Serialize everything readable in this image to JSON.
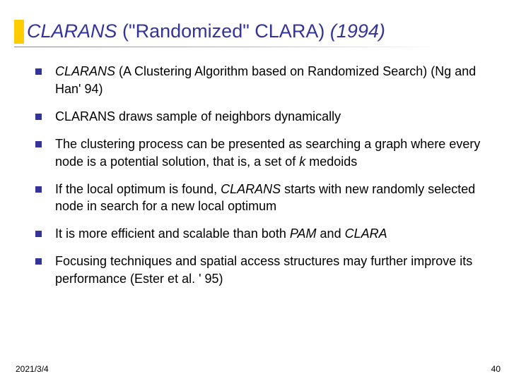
{
  "colors": {
    "accent_bar": "#ffcc00",
    "title_text": "#333399",
    "bullet_marker": "#333399",
    "body_text": "#000000",
    "background": "#ffffff"
  },
  "typography": {
    "title_fontsize": 27,
    "body_fontsize": 18,
    "footer_fontsize": 12,
    "font_family": "Verdana"
  },
  "title": {
    "part1_italic": "CLARANS ",
    "part2": "(\"Randomized\" CLARA) ",
    "part3_italic": "(1994)"
  },
  "bullets": [
    {
      "segments": [
        {
          "text": "CLARANS",
          "italic": true
        },
        {
          "text": " (A Clustering Algorithm based on Randomized Search)  (Ng and Han' 94)",
          "italic": false
        }
      ]
    },
    {
      "segments": [
        {
          "text": "CLARANS draws sample of neighbors dynamically",
          "italic": false
        }
      ]
    },
    {
      "segments": [
        {
          "text": "The clustering process can be presented as searching a graph where every node is a potential solution, that is, a set of ",
          "italic": false
        },
        {
          "text": "k",
          "italic": true
        },
        {
          "text": " medoids",
          "italic": false
        }
      ]
    },
    {
      "segments": [
        {
          "text": "If the local optimum is found, ",
          "italic": false
        },
        {
          "text": "CLARANS",
          "italic": true
        },
        {
          "text": " starts with new randomly selected node in search for a new local optimum",
          "italic": false
        }
      ]
    },
    {
      "segments": [
        {
          "text": "It is more efficient and scalable than both ",
          "italic": false
        },
        {
          "text": "PAM",
          "italic": true
        },
        {
          "text": " and ",
          "italic": false
        },
        {
          "text": "CLARA",
          "italic": true
        }
      ]
    },
    {
      "segments": [
        {
          "text": "Focusing techniques and spatial access structures may further improve its performance (Ester et al. ' 95)",
          "italic": false
        }
      ]
    }
  ],
  "footer": {
    "date": "2021/3/4",
    "page": "40"
  }
}
